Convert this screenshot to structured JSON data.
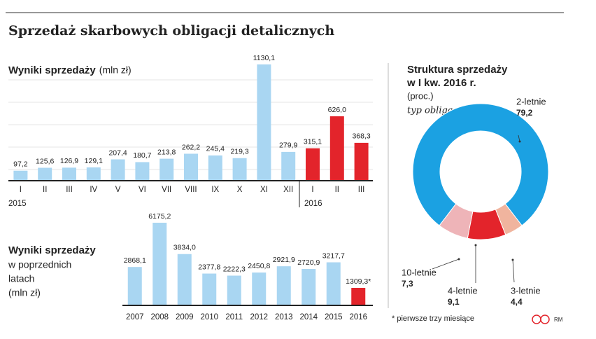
{
  "title": "Sprzedaż skarbowych obligacji detalicznych",
  "footnote": "* pierwsze trzy miesiące",
  "credit": "RM",
  "chart_data": [
    {
      "type": "bar",
      "title": "Wyniki sprzedaży",
      "subtitle": "(mln zł)",
      "categories": [
        "I",
        "II",
        "III",
        "IV",
        "V",
        "VI",
        "VII",
        "VIII",
        "IX",
        "X",
        "XI",
        "XII",
        "I",
        "II",
        "III"
      ],
      "year_labels": [
        "2015",
        "2016"
      ],
      "values": [
        97.2,
        125.6,
        126.9,
        129.1,
        207.4,
        180.7,
        213.8,
        262.2,
        245.4,
        219.3,
        1130.1,
        279.9,
        315.1,
        626.0,
        368.3
      ],
      "value_labels": [
        "97,2",
        "125,6",
        "126,9",
        "129,1",
        "207,4",
        "180,7",
        "213,8",
        "262,2",
        "245,4",
        "219,3",
        "1130,1",
        "279,9",
        "315,1",
        "626,0",
        "368,3"
      ],
      "colors": [
        "#a9d6f2",
        "#a9d6f2",
        "#a9d6f2",
        "#a9d6f2",
        "#a9d6f2",
        "#a9d6f2",
        "#a9d6f2",
        "#a9d6f2",
        "#a9d6f2",
        "#a9d6f2",
        "#a9d6f2",
        "#a9d6f2",
        "#e3242b",
        "#e3242b",
        "#e3242b"
      ]
    },
    {
      "type": "bar",
      "title": "Wyniki sprzedaży",
      "subtitle_lines": [
        "w poprzednich",
        "latach",
        "(mln zł)"
      ],
      "categories": [
        "2007",
        "2008",
        "2009",
        "2010",
        "2011",
        "2012",
        "2013",
        "2014",
        "2015",
        "2016"
      ],
      "values": [
        2868.1,
        6175.2,
        3834.0,
        2377.8,
        2222.3,
        2450.8,
        2921.9,
        2720.9,
        3217.7,
        1309.3
      ],
      "value_labels": [
        "2868,1",
        "6175,2",
        "3834,0",
        "2377,8",
        "2222,3",
        "2450,8",
        "2921,9",
        "2720,9",
        "3217,7",
        "1309,3*"
      ],
      "colors": [
        "#a9d6f2",
        "#a9d6f2",
        "#a9d6f2",
        "#a9d6f2",
        "#a9d6f2",
        "#a9d6f2",
        "#a9d6f2",
        "#a9d6f2",
        "#a9d6f2",
        "#e3242b"
      ]
    },
    {
      "type": "pie",
      "title_lines": [
        "Struktura sprzedaży",
        "w I kw. 2016 r."
      ],
      "subtitle": "(proc.)",
      "legend_title": "typ obligacji:",
      "categories": [
        "2-letnie",
        "3-letnie",
        "4-letnie",
        "10-letnie"
      ],
      "values": [
        79.2,
        4.4,
        9.1,
        7.3
      ],
      "value_labels": [
        "79,2",
        "4,4",
        "9,1",
        "7,3"
      ],
      "colors": [
        "#1ba1e2",
        "#f0b49e",
        "#e3242b",
        "#eeb4b8"
      ]
    }
  ]
}
